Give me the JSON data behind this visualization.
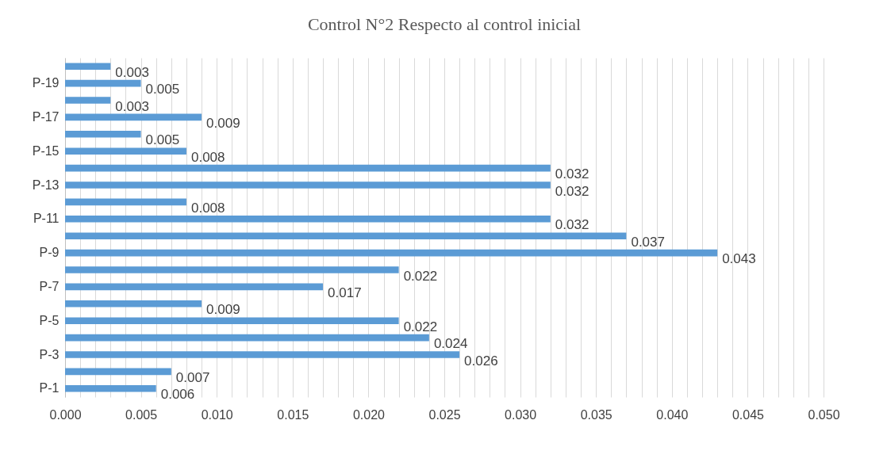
{
  "chart_data": {
    "type": "bar",
    "orientation": "horizontal",
    "title": "Control N°2 Respecto al control inicial",
    "categories": [
      null,
      "P-19",
      null,
      "P-17",
      null,
      "P-15",
      null,
      "P-13",
      null,
      "P-11",
      null,
      "P-9",
      null,
      "P-7",
      null,
      "P-5",
      null,
      "P-3",
      null,
      "P-1"
    ],
    "values": [
      0.003,
      0.005,
      0.003,
      0.009,
      0.005,
      0.008,
      0.032,
      0.032,
      0.008,
      0.032,
      0.037,
      0.043,
      0.022,
      0.017,
      0.009,
      0.022,
      0.024,
      0.026,
      0.007,
      0.006
    ],
    "color": "#5b9bd5",
    "data_labels": true,
    "grid": "x",
    "xlim": [
      0,
      0.05
    ],
    "xticks": [
      {
        "value": 0,
        "label": "0.000"
      },
      {
        "value": 0.001,
        "label": null
      },
      {
        "value": 0.002,
        "label": null
      },
      {
        "value": 0.003,
        "label": null
      },
      {
        "value": 0.004,
        "label": null
      },
      {
        "value": 0.005,
        "label": "0.005"
      },
      {
        "value": 0.006,
        "label": null
      },
      {
        "value": 0.007,
        "label": null
      },
      {
        "value": 0.008,
        "label": null
      },
      {
        "value": 0.009,
        "label": null
      },
      {
        "value": 0.01,
        "label": "0.010"
      },
      {
        "value": 0.011,
        "label": null
      },
      {
        "value": 0.012,
        "label": null
      },
      {
        "value": 0.013,
        "label": null
      },
      {
        "value": 0.014,
        "label": null
      },
      {
        "value": 0.015,
        "label": "0.015"
      },
      {
        "value": 0.016,
        "label": null
      },
      {
        "value": 0.017,
        "label": null
      },
      {
        "value": 0.018,
        "label": null
      },
      {
        "value": 0.019,
        "label": null
      },
      {
        "value": 0.02,
        "label": "0.020"
      },
      {
        "value": 0.021,
        "label": null
      },
      {
        "value": 0.022,
        "label": null
      },
      {
        "value": 0.023,
        "label": null
      },
      {
        "value": 0.024,
        "label": null
      },
      {
        "value": 0.025,
        "label": "0.025"
      },
      {
        "value": 0.026,
        "label": null
      },
      {
        "value": 0.027,
        "label": null
      },
      {
        "value": 0.028,
        "label": null
      },
      {
        "value": 0.029,
        "label": null
      },
      {
        "value": 0.03,
        "label": "0.030"
      },
      {
        "value": 0.031,
        "label": null
      },
      {
        "value": 0.032,
        "label": null
      },
      {
        "value": 0.033,
        "label": null
      },
      {
        "value": 0.034,
        "label": null
      },
      {
        "value": 0.035,
        "label": "0.035"
      },
      {
        "value": 0.036,
        "label": null
      },
      {
        "value": 0.037,
        "label": null
      },
      {
        "value": 0.038,
        "label": null
      },
      {
        "value": 0.039,
        "label": null
      },
      {
        "value": 0.04,
        "label": "0.040"
      },
      {
        "value": 0.041,
        "label": null
      },
      {
        "value": 0.042,
        "label": null
      },
      {
        "value": 0.043,
        "label": null
      },
      {
        "value": 0.044,
        "label": null
      },
      {
        "value": 0.045,
        "label": "0.045"
      },
      {
        "value": 0.046,
        "label": null
      },
      {
        "value": 0.047,
        "label": null
      },
      {
        "value": 0.048,
        "label": null
      },
      {
        "value": 0.049,
        "label": null
      },
      {
        "value": 0.05,
        "label": "0.050"
      }
    ]
  }
}
